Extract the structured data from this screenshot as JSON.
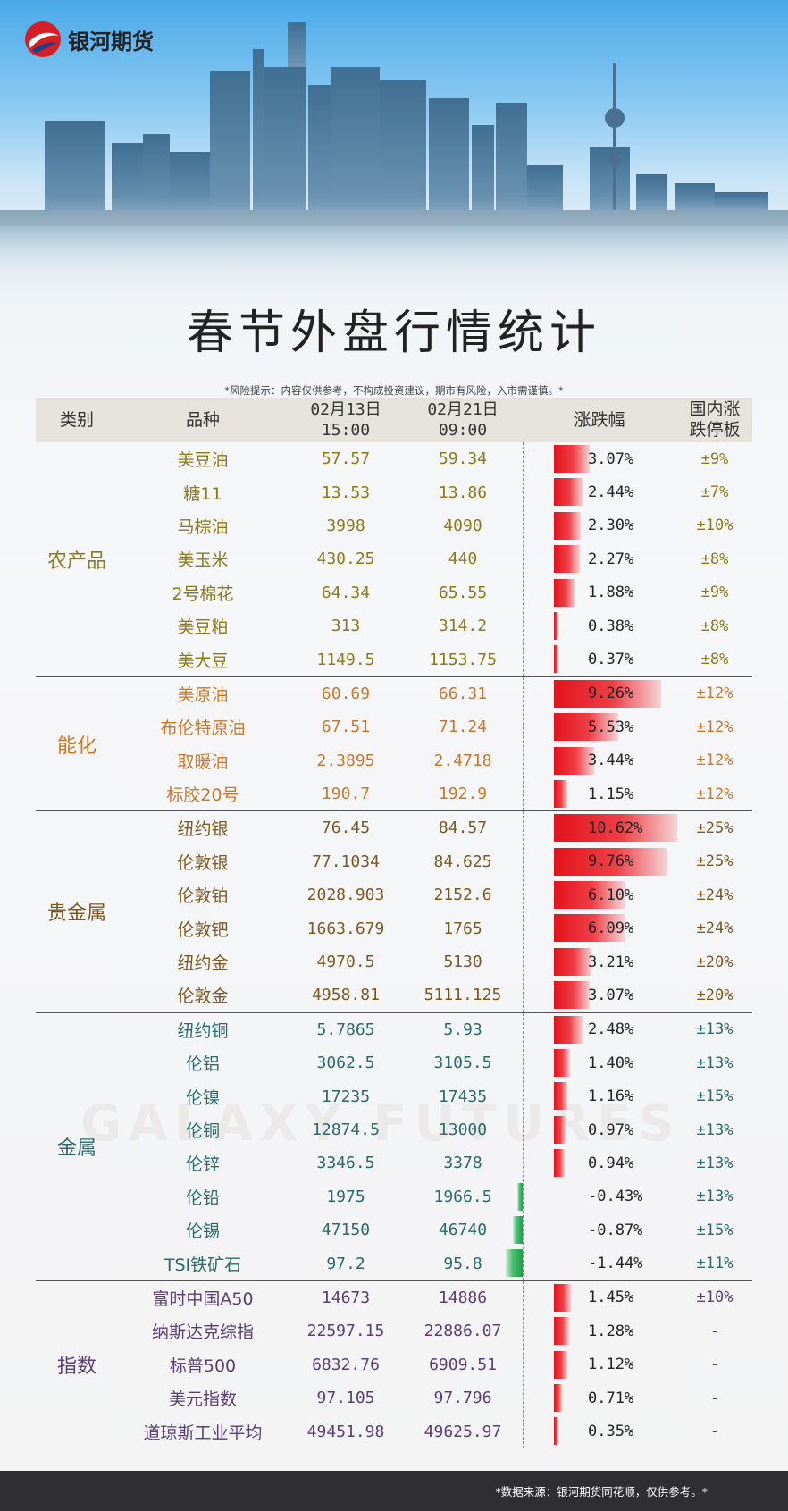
{
  "brand": {
    "name": "银河期货",
    "watermark": "GALAXY FUTURES"
  },
  "title": "春节外盘行情统计",
  "risk_note": "*风险提示：内容仅供参考，不构成投资建议，期市有风险，入市需谨慎。*",
  "header": {
    "category": "类别",
    "item": "品种",
    "date1": [
      "02月13日",
      "15:00"
    ],
    "date2": [
      "02月21日",
      "09:00"
    ],
    "change": "涨跌幅",
    "limit": [
      "国内涨",
      "跌停板"
    ]
  },
  "colors": {
    "up_bar": "#e3121c",
    "down_bar": "#18a046",
    "agri": "#8a7a1a",
    "energy": "#c9782a",
    "precious": "#7a5a22",
    "metal": "#2a6a6a",
    "index": "#5a3f72"
  },
  "max_abs_change": 10.62,
  "groups": [
    {
      "key": "agri",
      "name": "农产品",
      "rows": [
        {
          "item": "美豆油",
          "d1": "57.57",
          "d2": "59.34",
          "pct": "3.07%",
          "value": 3.07,
          "limit": "±9%"
        },
        {
          "item": "糖11",
          "d1": "13.53",
          "d2": "13.86",
          "pct": "2.44%",
          "value": 2.44,
          "limit": "±7%"
        },
        {
          "item": "马棕油",
          "d1": "3998",
          "d2": "4090",
          "pct": "2.30%",
          "value": 2.3,
          "limit": "±10%"
        },
        {
          "item": "美玉米",
          "d1": "430.25",
          "d2": "440",
          "pct": "2.27%",
          "value": 2.27,
          "limit": "±8%"
        },
        {
          "item": "2号棉花",
          "d1": "64.34",
          "d2": "65.55",
          "pct": "1.88%",
          "value": 1.88,
          "limit": "±9%"
        },
        {
          "item": "美豆粕",
          "d1": "313",
          "d2": "314.2",
          "pct": "0.38%",
          "value": 0.38,
          "limit": "±8%"
        },
        {
          "item": "美大豆",
          "d1": "1149.5",
          "d2": "1153.75",
          "pct": "0.37%",
          "value": 0.37,
          "limit": "±8%"
        }
      ]
    },
    {
      "key": "energy",
      "name": "能化",
      "rows": [
        {
          "item": "美原油",
          "d1": "60.69",
          "d2": "66.31",
          "pct": "9.26%",
          "value": 9.26,
          "limit": "±12%"
        },
        {
          "item": "布伦特原油",
          "d1": "67.51",
          "d2": "71.24",
          "pct": "5.53%",
          "value": 5.53,
          "limit": "±12%"
        },
        {
          "item": "取暖油",
          "d1": "2.3895",
          "d2": "2.4718",
          "pct": "3.44%",
          "value": 3.44,
          "limit": "±12%"
        },
        {
          "item": "标胶20号",
          "d1": "190.7",
          "d2": "192.9",
          "pct": "1.15%",
          "value": 1.15,
          "limit": "±12%"
        }
      ]
    },
    {
      "key": "prec",
      "name": "贵金属",
      "rows": [
        {
          "item": "纽约银",
          "d1": "76.45",
          "d2": "84.57",
          "pct": "10.62%",
          "value": 10.62,
          "limit": "±25%"
        },
        {
          "item": "伦敦银",
          "d1": "77.1034",
          "d2": "84.625",
          "pct": "9.76%",
          "value": 9.76,
          "limit": "±25%"
        },
        {
          "item": "伦敦铂",
          "d1": "2028.903",
          "d2": "2152.6",
          "pct": "6.10%",
          "value": 6.1,
          "limit": "±24%"
        },
        {
          "item": "伦敦钯",
          "d1": "1663.679",
          "d2": "1765",
          "pct": "6.09%",
          "value": 6.09,
          "limit": "±24%"
        },
        {
          "item": "纽约金",
          "d1": "4970.5",
          "d2": "5130",
          "pct": "3.21%",
          "value": 3.21,
          "limit": "±20%"
        },
        {
          "item": "伦敦金",
          "d1": "4958.81",
          "d2": "5111.125",
          "pct": "3.07%",
          "value": 3.07,
          "limit": "±20%"
        }
      ]
    },
    {
      "key": "metal",
      "name": "金属",
      "rows": [
        {
          "item": "纽约铜",
          "d1": "5.7865",
          "d2": "5.93",
          "pct": "2.48%",
          "value": 2.48,
          "limit": "±13%"
        },
        {
          "item": "伦铝",
          "d1": "3062.5",
          "d2": "3105.5",
          "pct": "1.40%",
          "value": 1.4,
          "limit": "±13%"
        },
        {
          "item": "伦镍",
          "d1": "17235",
          "d2": "17435",
          "pct": "1.16%",
          "value": 1.16,
          "limit": "±15%"
        },
        {
          "item": "伦铜",
          "d1": "12874.5",
          "d2": "13000",
          "pct": "0.97%",
          "value": 0.97,
          "limit": "±13%"
        },
        {
          "item": "伦锌",
          "d1": "3346.5",
          "d2": "3378",
          "pct": "0.94%",
          "value": 0.94,
          "limit": "±13%"
        },
        {
          "item": "伦铅",
          "d1": "1975",
          "d2": "1966.5",
          "pct": "-0.43%",
          "value": -0.43,
          "limit": "±13%"
        },
        {
          "item": "伦锡",
          "d1": "47150",
          "d2": "46740",
          "pct": "-0.87%",
          "value": -0.87,
          "limit": "±15%"
        },
        {
          "item": "TSI铁矿石",
          "d1": "97.2",
          "d2": "95.8",
          "pct": "-1.44%",
          "value": -1.44,
          "limit": "±11%"
        }
      ]
    },
    {
      "key": "index",
      "name": "指数",
      "rows": [
        {
          "item": "富时中国A50",
          "d1": "14673",
          "d2": "14886",
          "pct": "1.45%",
          "value": 1.45,
          "limit": "±10%"
        },
        {
          "item": "纳斯达克综指",
          "d1": "22597.15",
          "d2": "22886.07",
          "pct": "1.28%",
          "value": 1.28,
          "limit": "-"
        },
        {
          "item": "标普500",
          "d1": "6832.76",
          "d2": "6909.51",
          "pct": "1.12%",
          "value": 1.12,
          "limit": "-"
        },
        {
          "item": "美元指数",
          "d1": "97.105",
          "d2": "97.796",
          "pct": "0.71%",
          "value": 0.71,
          "limit": "-"
        },
        {
          "item": "道琼斯工业平均",
          "d1": "49451.98",
          "d2": "49625.97",
          "pct": "0.35%",
          "value": 0.35,
          "limit": "-"
        }
      ]
    }
  ],
  "footer": "*数据来源：银河期货同花顺，仅供参考。*"
}
